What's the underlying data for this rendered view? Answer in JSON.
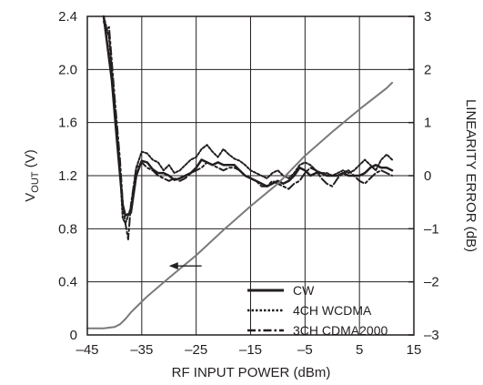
{
  "chart_data": {
    "type": "line",
    "title": "",
    "xlabel": "RF INPUT POWER (dBm)",
    "ylabel_left_main": "V",
    "ylabel_left_sub": "OUT",
    "ylabel_left_unit": " (V)",
    "ylabel_right": "LINEARITY ERROR (dB)",
    "xlim": [
      -45,
      15
    ],
    "ylim_left": [
      0,
      2.4
    ],
    "ylim_right": [
      -3,
      3
    ],
    "x_ticks": [
      -45,
      -35,
      -25,
      -15,
      -5,
      5,
      15
    ],
    "x_tick_labels": [
      "–45",
      "–35",
      "–25",
      "–15",
      "–5",
      "5",
      "15"
    ],
    "y_left_ticks": [
      0,
      0.4,
      0.8,
      1.2,
      1.6,
      2.0,
      2.4
    ],
    "y_left_tick_labels": [
      "0",
      "0.4",
      "0.8",
      "1.2",
      "1.6",
      "2.0",
      "2.4"
    ],
    "y_right_ticks": [
      -3,
      -2,
      -1,
      0,
      1,
      2,
      3
    ],
    "y_right_tick_labels": [
      "–3",
      "–2",
      "–1",
      "0",
      "1",
      "2",
      "3"
    ],
    "grid": true,
    "legend_position": "lower-right",
    "series": [
      {
        "name": "CW",
        "axis": "right",
        "style": "solid",
        "x": [
          -42,
          -40.5,
          -39.5,
          -38.5,
          -38,
          -37,
          -36,
          -35,
          -34,
          -33,
          -32,
          -31,
          -30,
          -29,
          -28,
          -27,
          -26,
          -25,
          -24,
          -23,
          -22,
          -21,
          -20,
          -19,
          -18,
          -17,
          -16,
          -15,
          -14,
          -13,
          -12,
          -11,
          -10,
          -9,
          -8,
          -7,
          -6,
          -5,
          -4,
          -3,
          -2,
          -1,
          0,
          1,
          2,
          3,
          4,
          5,
          6,
          7,
          8,
          9,
          10,
          11
        ],
        "y": [
          3.0,
          1.8,
          0.6,
          -0.55,
          -0.75,
          -0.7,
          0.0,
          0.28,
          0.25,
          0.12,
          0.05,
          0.05,
          0.0,
          -0.08,
          -0.05,
          0.0,
          0.05,
          0.15,
          0.3,
          0.25,
          0.2,
          0.25,
          0.2,
          0.2,
          0.2,
          0.1,
          0.0,
          -0.05,
          -0.1,
          -0.15,
          -0.2,
          -0.15,
          -0.1,
          -0.15,
          -0.1,
          0.0,
          0.15,
          0.1,
          0.0,
          0.05,
          0.05,
          0.0,
          0.0,
          0.0,
          0.05,
          0.0,
          0.0,
          0.0,
          0.05,
          0.15,
          0.2,
          0.15,
          0.15,
          0.1
        ]
      },
      {
        "name": "4CH WCDMA",
        "axis": "right",
        "style": "dotted",
        "x": [
          -42,
          -41,
          -40,
          -39,
          -38.5,
          -38,
          -37,
          -36,
          -35,
          -34,
          -33,
          -32,
          -31,
          -30,
          -29,
          -28,
          -27,
          -26,
          -25,
          -24,
          -23,
          -22,
          -21,
          -20,
          -19,
          -18,
          -17,
          -16,
          -15,
          -14,
          -13,
          -12,
          -11,
          -10,
          -9,
          -8,
          -7,
          -6,
          -5,
          -4,
          -3,
          -2,
          -1,
          0,
          1,
          2,
          3,
          4,
          5,
          6,
          7,
          8,
          9,
          10,
          11
        ],
        "y": [
          3.0,
          2.6,
          1.4,
          0.1,
          -0.8,
          -0.9,
          -0.6,
          0.15,
          0.45,
          0.42,
          0.3,
          0.25,
          0.1,
          0.2,
          0.05,
          0.1,
          0.2,
          0.3,
          0.35,
          0.5,
          0.58,
          0.45,
          0.35,
          0.5,
          0.4,
          0.32,
          0.28,
          0.2,
          0.1,
          0.05,
          0.0,
          -0.05,
          0.05,
          0.1,
          0.0,
          -0.05,
          0.05,
          0.2,
          0.25,
          0.2,
          0.1,
          0.05,
          0.05,
          0.0,
          0.05,
          0.1,
          0.05,
          0.1,
          0.2,
          0.3,
          0.2,
          0.1,
          0.3,
          0.4,
          0.3
        ]
      },
      {
        "name": "3CH CDMA2000",
        "axis": "right",
        "style": "dashdot",
        "x": [
          -42,
          -41.5,
          -41,
          -40,
          -39,
          -38.5,
          -38,
          -37.5,
          -37,
          -36,
          -35,
          -34,
          -33,
          -32,
          -31,
          -30,
          -29,
          -28,
          -27,
          -26,
          -25,
          -24,
          -23,
          -22,
          -21,
          -20,
          -19,
          -18,
          -17,
          -16,
          -15,
          -14,
          -13,
          -12,
          -11,
          -10,
          -9,
          -8,
          -7,
          -6,
          -5,
          -4,
          -3,
          -2,
          -1,
          0,
          1,
          2,
          3,
          4,
          5,
          6,
          7,
          8,
          9,
          10,
          11
        ],
        "y": [
          2.9,
          2.75,
          2.8,
          1.5,
          0.3,
          -0.5,
          -0.9,
          -1.2,
          -0.55,
          0.15,
          0.25,
          0.15,
          0.1,
          0.0,
          -0.05,
          -0.1,
          -0.05,
          -0.1,
          -0.05,
          0.05,
          0.1,
          0.15,
          0.25,
          0.2,
          0.15,
          0.1,
          0.15,
          0.15,
          0.1,
          0.0,
          -0.05,
          -0.1,
          -0.2,
          -0.2,
          -0.1,
          -0.15,
          -0.2,
          -0.25,
          -0.15,
          -0.1,
          0.05,
          0.15,
          0.1,
          -0.05,
          -0.15,
          -0.2,
          -0.05,
          0.05,
          0.1,
          0.0,
          -0.1,
          -0.15,
          -0.05,
          0.05,
          0.1,
          0.05,
          0.0
        ]
      },
      {
        "name": "VOUT",
        "axis": "left",
        "style": "solid-gray",
        "x": [
          -45,
          -44,
          -43,
          -42,
          -41,
          -40,
          -39,
          -38,
          -37,
          -36,
          -35,
          -34,
          -32,
          -30,
          -25,
          -20,
          -15,
          -10,
          -5,
          0,
          5,
          10,
          11
        ],
        "y": [
          0.05,
          0.05,
          0.05,
          0.05,
          0.055,
          0.06,
          0.08,
          0.12,
          0.17,
          0.21,
          0.25,
          0.29,
          0.36,
          0.43,
          0.6,
          0.79,
          0.97,
          1.14,
          1.35,
          1.53,
          1.7,
          1.86,
          1.9
        ]
      }
    ],
    "annotation_arrow": {
      "from": [
        -24,
        0.52
      ],
      "to": [
        -30,
        0.52
      ],
      "points_to_axis": "left"
    }
  },
  "legend": {
    "items": [
      {
        "label": "CW"
      },
      {
        "label": "4CH WCDMA"
      },
      {
        "label": "3CH CDMA2000"
      }
    ]
  }
}
